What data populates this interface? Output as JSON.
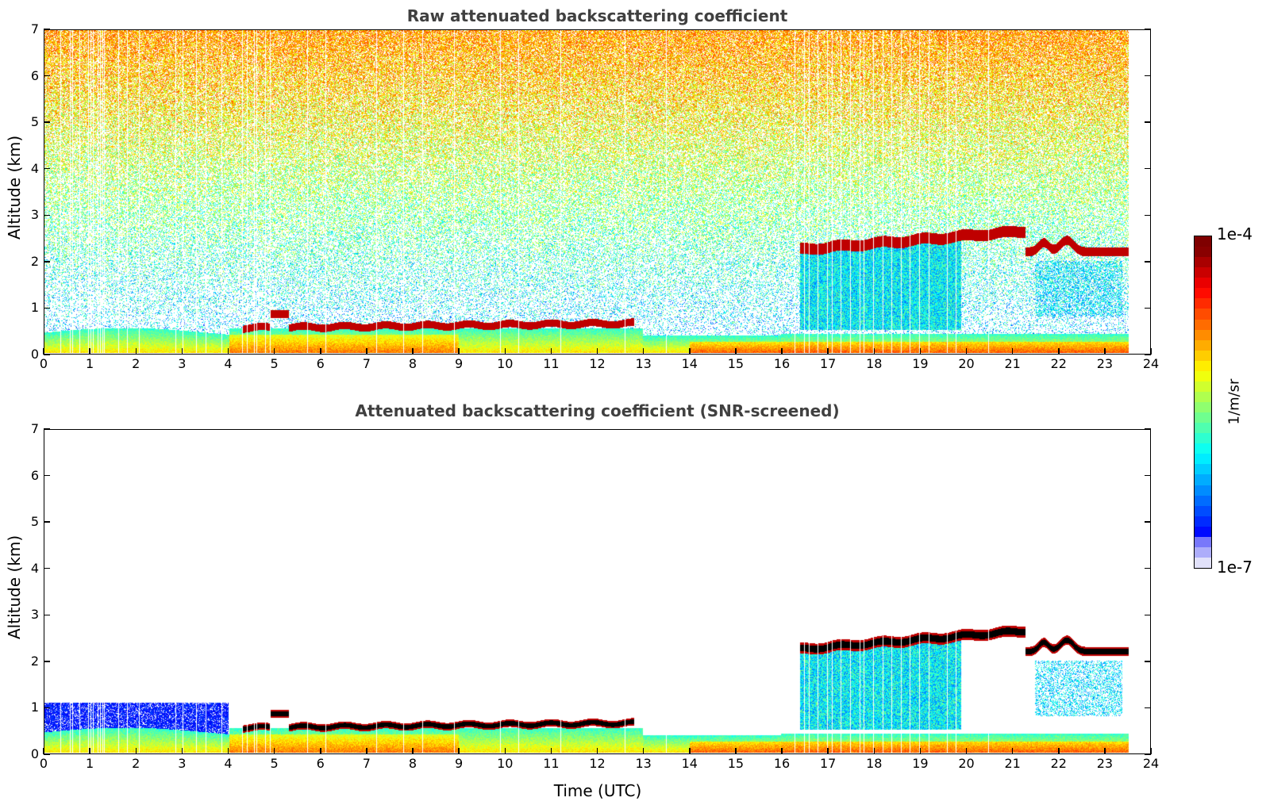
{
  "chart_data": [
    {
      "type": "heatmap",
      "title": "Raw attenuated backscattering coefficient",
      "xlabel": "",
      "ylabel": "Altitude (km)",
      "xlim": [
        0,
        24
      ],
      "ylim": [
        0,
        7
      ],
      "xticks": [
        "0",
        "1",
        "2",
        "3",
        "4",
        "5",
        "6",
        "7",
        "8",
        "9",
        "10",
        "11",
        "12",
        "13",
        "14",
        "15",
        "16",
        "17",
        "18",
        "19",
        "20",
        "21",
        "22",
        "23",
        "24"
      ],
      "yticks": [
        "0",
        "1",
        "2",
        "3",
        "4",
        "5",
        "6",
        "7"
      ],
      "data_end_time": 23.55,
      "screened": false,
      "features": {
        "cloud_layer_1": {
          "time_range": [
            4.3,
            12.8
          ],
          "altitude_km": [
            0.55,
            0.65
          ]
        },
        "cloud_layer_2": {
          "time_range": [
            16.4,
            21.3
          ],
          "altitude_km": [
            2.25,
            2.65
          ]
        },
        "cloud_layer_3": {
          "time_range": [
            21.3,
            23.55
          ],
          "altitude_km": [
            2.1,
            2.3
          ]
        },
        "boundary_layer_top_km": 0.5,
        "noise_increases_with_altitude": true
      }
    },
    {
      "type": "heatmap",
      "title": "Attenuated backscattering coefficient (SNR-screened)",
      "xlabel": "Time (UTC)",
      "ylabel": "Altitude (km)",
      "xlim": [
        0,
        24
      ],
      "ylim": [
        0,
        7
      ],
      "xticks": [
        "0",
        "1",
        "2",
        "3",
        "4",
        "5",
        "6",
        "7",
        "8",
        "9",
        "10",
        "11",
        "12",
        "13",
        "14",
        "15",
        "16",
        "17",
        "18",
        "19",
        "20",
        "21",
        "22",
        "23",
        "24"
      ],
      "yticks": [
        "0",
        "1",
        "2",
        "3",
        "4",
        "5",
        "6",
        "7"
      ],
      "data_end_time": 23.55,
      "screened": true,
      "features": {
        "cloud_layer_1": {
          "time_range": [
            4.3,
            12.8
          ],
          "altitude_km": [
            0.55,
            0.65
          ]
        },
        "cloud_layer_2": {
          "time_range": [
            16.4,
            21.3
          ],
          "altitude_km": [
            2.25,
            2.65
          ]
        },
        "cloud_layer_3": {
          "time_range": [
            21.3,
            23.55
          ],
          "altitude_km": [
            2.1,
            2.3
          ]
        },
        "aerosol_layer_km": [
          0,
          1.1
        ],
        "saturated_color": "#000000"
      }
    }
  ],
  "colorbar": {
    "label": "1/m/sr",
    "max_label": "1e-4",
    "min_label": "1e-7",
    "colormap": "jet",
    "scale": "log"
  }
}
